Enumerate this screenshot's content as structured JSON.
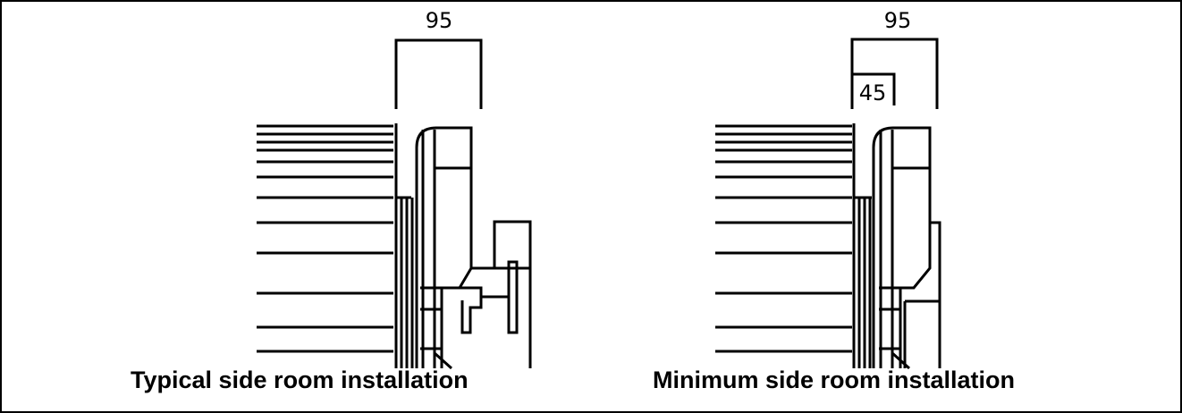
{
  "left_panel": {
    "dimension_label": "95",
    "caption": "Typical side room installation"
  },
  "right_panel": {
    "dimension_label_outer": "95",
    "dimension_label_inner": "45",
    "caption": "Minimum side room installation"
  }
}
